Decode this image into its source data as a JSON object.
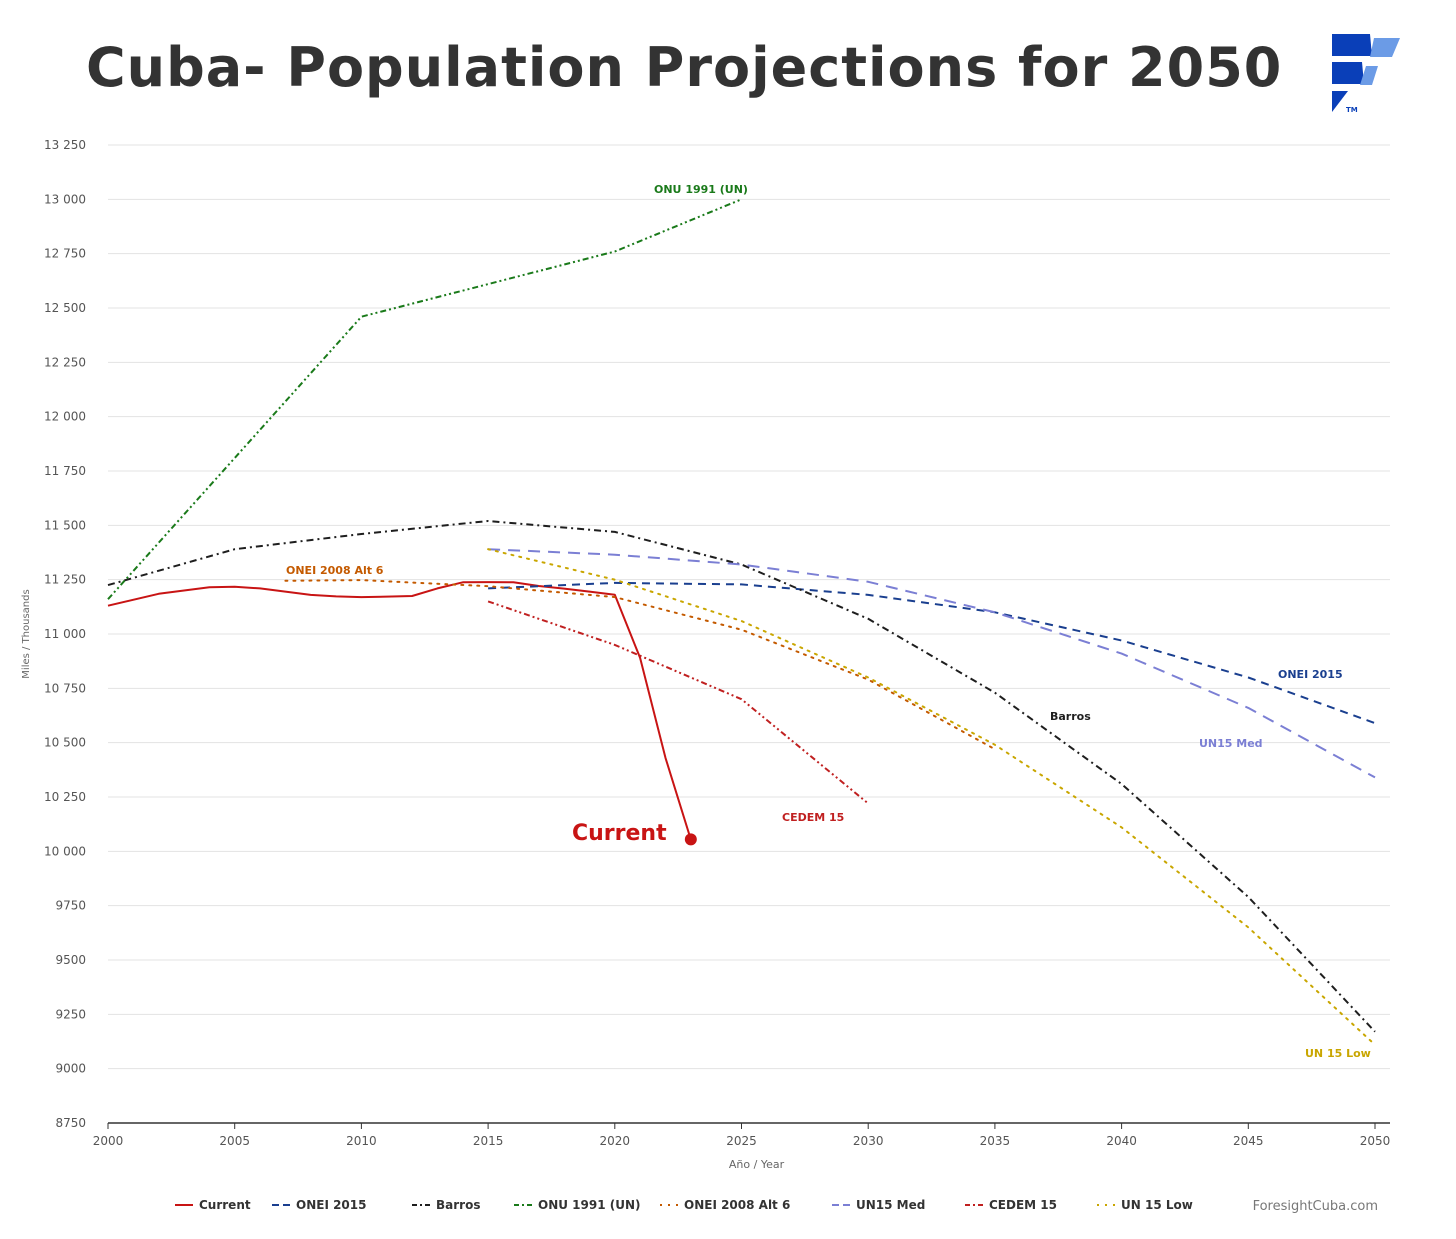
{
  "title": "Cuba- Population Projections for 2050",
  "credit": "ForesightCuba.com",
  "logo_icon": "foresight-cuba-logo-icon",
  "chart_data": {
    "type": "line",
    "title": "Cuba- Population Projections for 2050",
    "xlabel": "Año / Year",
    "ylabel": "Miles / Thousands",
    "xlim": [
      2000,
      2050
    ],
    "ylim": [
      8750,
      13250
    ],
    "x_ticks": [
      2000,
      2005,
      2010,
      2015,
      2020,
      2025,
      2030,
      2035,
      2040,
      2045,
      2050
    ],
    "y_ticks": [
      8750,
      9000,
      9250,
      9500,
      9750,
      10000,
      10250,
      10500,
      10750,
      11000,
      11250,
      11500,
      11750,
      12000,
      12250,
      12500,
      12750,
      13000,
      13250
    ],
    "x_tick_labels": [
      "2000",
      "2005",
      "2010",
      "2015",
      "2020",
      "2025",
      "2030",
      "2035",
      "2040",
      "2045",
      "2050"
    ],
    "y_tick_labels": [
      "8750",
      "9000",
      "9250",
      "9500",
      "9750",
      "10 000",
      "10 250",
      "10 500",
      "10 750",
      "11 000",
      "11 250",
      "11 500",
      "11 750",
      "12 000",
      "12 250",
      "12 500",
      "12 750",
      "13 000",
      "13 250"
    ],
    "grid": true,
    "legend": "bottom",
    "series": [
      {
        "name": "Current",
        "color": "#c81414",
        "dash": "solid",
        "label": "Current",
        "x": [
          2000,
          2002,
          2004,
          2005,
          2006,
          2008,
          2009,
          2010,
          2011,
          2012,
          2013,
          2014,
          2015,
          2016,
          2017,
          2018,
          2019,
          2020,
          2021,
          2022,
          2023
        ],
        "y": [
          11130,
          11185,
          11215,
          11217,
          11210,
          11180,
          11173,
          11170,
          11172,
          11175,
          11210,
          11238,
          11239,
          11238,
          11221,
          11209,
          11195,
          11181,
          10890,
          10430,
          10055
        ]
      },
      {
        "name": "ONEI 2015",
        "color": "#1a3f8f",
        "dash": "dash",
        "label": "ONEI 2015",
        "x": [
          2015,
          2020,
          2025,
          2030,
          2035,
          2040,
          2045,
          2050
        ],
        "y": [
          11210,
          11235,
          11228,
          11180,
          11100,
          10970,
          10800,
          10590
        ]
      },
      {
        "name": "Barros",
        "color": "#1e1e1e",
        "dash": "dashdot",
        "label": "Barros",
        "x": [
          2000,
          2005,
          2010,
          2015,
          2020,
          2025,
          2030,
          2035,
          2040,
          2045,
          2050
        ],
        "y": [
          11225,
          11390,
          11460,
          11520,
          11470,
          11320,
          11070,
          10730,
          10310,
          9790,
          9170
        ]
      },
      {
        "name": "ONU 1991 (UN)",
        "color": "#1a7a1a",
        "dash": "dashdotdot",
        "label": "ONU 1991 (UN)",
        "x": [
          2000,
          2005,
          2010,
          2015,
          2020,
          2025
        ],
        "y": [
          11160,
          11810,
          12460,
          12610,
          12760,
          13000
        ]
      },
      {
        "name": "ONEI 2008 Alt 6",
        "color": "#c45a00",
        "dash": "dot",
        "label": "ONEI 2008 Alt 6",
        "x": [
          2007,
          2010,
          2015,
          2020,
          2025,
          2030,
          2035
        ],
        "y": [
          11245,
          11248,
          11220,
          11170,
          11020,
          10790,
          10470
        ]
      },
      {
        "name": "UN15 Med",
        "color": "#7b7fd4",
        "dash": "longdash",
        "label": "UN15 Med",
        "x": [
          2015,
          2020,
          2025,
          2030,
          2035,
          2040,
          2045,
          2050
        ],
        "y": [
          11390,
          11365,
          11320,
          11240,
          11100,
          10910,
          10660,
          10340
        ]
      },
      {
        "name": "CEDEM 15",
        "color": "#c02020",
        "dash": "dashdotdot",
        "label": "CEDEM 15",
        "x": [
          2015,
          2020,
          2025,
          2030
        ],
        "y": [
          11150,
          10950,
          10700,
          10220
        ]
      },
      {
        "name": "UN 15 Low",
        "color": "#c9a600",
        "dash": "dot",
        "label": "UN 15 Low",
        "x": [
          2015,
          2020,
          2025,
          2030,
          2035,
          2040,
          2045,
          2050
        ],
        "y": [
          11390,
          11250,
          11060,
          10800,
          10490,
          10110,
          9650,
          9110
        ]
      }
    ]
  }
}
